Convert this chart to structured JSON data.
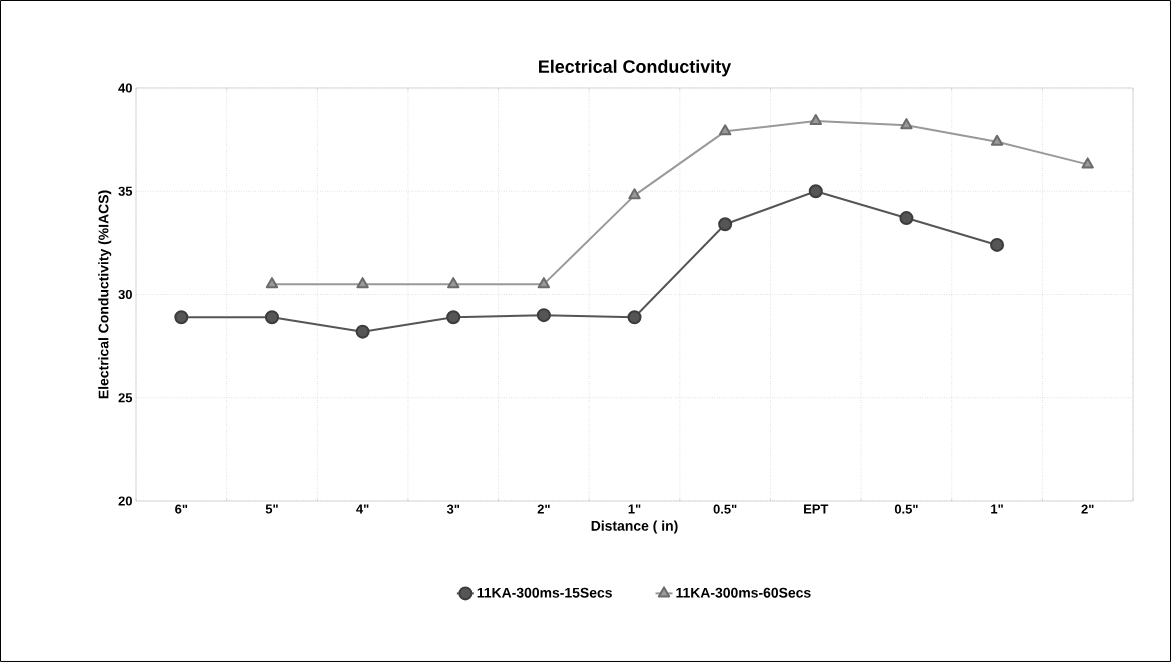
{
  "chart_data": {
    "type": "line",
    "title": "Electrical Conductivity",
    "xlabel": "Distance ( in)",
    "ylabel": "Electrical Conductivity (%IACS)",
    "categories": [
      "6\"",
      "5\"",
      "4\"",
      "3\"",
      "2\"",
      "1\"",
      "0.5\"",
      "EPT",
      "0.5\"",
      "1\"",
      "2\""
    ],
    "series": [
      {
        "name": "11KA-300ms-15Secs",
        "color": "#555555",
        "marker": "circle",
        "values": [
          28.9,
          28.9,
          28.2,
          28.9,
          29.0,
          28.9,
          33.4,
          35.0,
          33.7,
          32.4,
          null
        ]
      },
      {
        "name": "11KA-300ms-60Secs",
        "color": "#999999",
        "marker": "triangle",
        "values": [
          null,
          30.5,
          30.5,
          30.5,
          30.5,
          34.8,
          37.9,
          38.4,
          38.2,
          37.4,
          36.3
        ]
      }
    ],
    "ylim": [
      20,
      40
    ],
    "yticks": [
      20,
      25,
      30,
      35,
      40
    ],
    "grid": true,
    "legend": "bottom",
    "line_style": "solid"
  }
}
